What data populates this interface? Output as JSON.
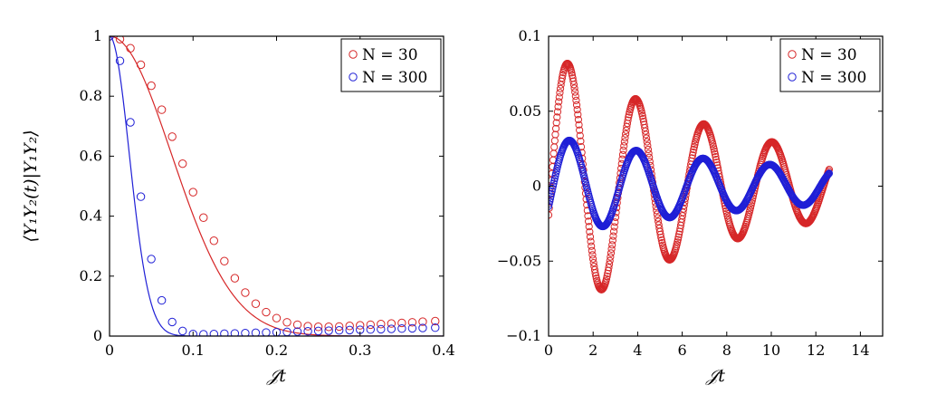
{
  "chart_data": [
    {
      "type": "scatter",
      "title": "",
      "xlabel": "𝒥t",
      "ylabel": "⟨Y₁Y₂(t)|Y₁Y₂⟩",
      "xlim": [
        0,
        0.4
      ],
      "ylim": [
        0,
        1
      ],
      "xticks": [
        0,
        0.1,
        0.2,
        0.3,
        0.4
      ],
      "yticks": [
        0,
        0.2,
        0.4,
        0.6,
        0.8,
        1
      ],
      "xtick_labels": [
        "0",
        "0.1",
        "0.2",
        "0.3",
        "0.4"
      ],
      "ytick_labels": [
        "0",
        "0.2",
        "0.4",
        "0.6",
        "0.8",
        "1"
      ],
      "legend_position": "top-right",
      "grid": false,
      "series": [
        {
          "name": "N = 30",
          "color": "#d62728",
          "marker": "circle",
          "x": [
            0,
            0.0125,
            0.025,
            0.0375,
            0.05,
            0.0625,
            0.075,
            0.0875,
            0.1,
            0.1125,
            0.125,
            0.1375,
            0.15,
            0.1625,
            0.175,
            0.1875,
            0.2,
            0.2125,
            0.225,
            0.2375,
            0.25,
            0.2625,
            0.275,
            0.2875,
            0.3,
            0.3125,
            0.325,
            0.3375,
            0.35,
            0.3625,
            0.375,
            0.39
          ],
          "y": [
            1.0,
            0.99,
            0.96,
            0.905,
            0.835,
            0.755,
            0.665,
            0.575,
            0.48,
            0.395,
            0.318,
            0.25,
            0.193,
            0.145,
            0.108,
            0.08,
            0.06,
            0.046,
            0.038,
            0.033,
            0.031,
            0.031,
            0.032,
            0.034,
            0.036,
            0.038,
            0.04,
            0.042,
            0.044,
            0.046,
            0.048,
            0.05
          ]
        },
        {
          "name": "N = 300",
          "color": "#1f1fd6",
          "marker": "circle",
          "x": [
            0,
            0.0125,
            0.025,
            0.0375,
            0.05,
            0.0625,
            0.075,
            0.0875,
            0.1,
            0.1125,
            0.125,
            0.1375,
            0.15,
            0.1625,
            0.175,
            0.1875,
            0.2,
            0.2125,
            0.225,
            0.2375,
            0.25,
            0.2625,
            0.275,
            0.2875,
            0.3,
            0.3125,
            0.325,
            0.3375,
            0.35,
            0.3625,
            0.375,
            0.39
          ],
          "y": [
            1.0,
            0.918,
            0.713,
            0.465,
            0.257,
            0.119,
            0.047,
            0.017,
            0.007,
            0.006,
            0.007,
            0.008,
            0.009,
            0.01,
            0.011,
            0.012,
            0.013,
            0.014,
            0.015,
            0.016,
            0.017,
            0.018,
            0.019,
            0.02,
            0.021,
            0.022,
            0.023,
            0.024,
            0.025,
            0.026,
            0.027,
            0.028
          ]
        }
      ],
      "curves": [
        {
          "color": "#d62728",
          "form": "gaussian",
          "width": 0.105
        },
        {
          "color": "#1f1fd6",
          "form": "gaussian",
          "width": 0.0335
        }
      ]
    },
    {
      "type": "scatter",
      "title": "",
      "xlabel": "𝒥t",
      "ylabel": "",
      "xlim": [
        0,
        15
      ],
      "ylim": [
        -0.1,
        0.1
      ],
      "xticks": [
        0,
        2,
        4,
        6,
        8,
        10,
        12,
        14
      ],
      "yticks": [
        -0.1,
        -0.05,
        0,
        0.05,
        0.1
      ],
      "xtick_labels": [
        "0",
        "2",
        "4",
        "6",
        "8",
        "10",
        "12",
        "14"
      ],
      "ytick_labels": [
        "−0.1",
        "−0.05",
        "0",
        "0.05",
        "0.1"
      ],
      "legend_position": "top-right",
      "grid": false,
      "series": [
        {
          "name": "N = 30",
          "color": "#d62728",
          "marker": "circle",
          "x_range": [
            0,
            12.6
          ],
          "samples": 500,
          "form": "damped-cosine",
          "amplitude": 0.09,
          "decay_time": 9.0,
          "period": 3.06,
          "phase": 0.87,
          "offset": 0.0
        },
        {
          "name": "N = 300",
          "color": "#1f1fd6",
          "marker": "circle",
          "x_range": [
            0,
            12.6
          ],
          "samples": 500,
          "form": "damped-cosine",
          "amplitude": 0.033,
          "decay_time": 12.0,
          "period": 3.0,
          "phase": 0.95,
          "offset": 0.0
        }
      ]
    }
  ]
}
